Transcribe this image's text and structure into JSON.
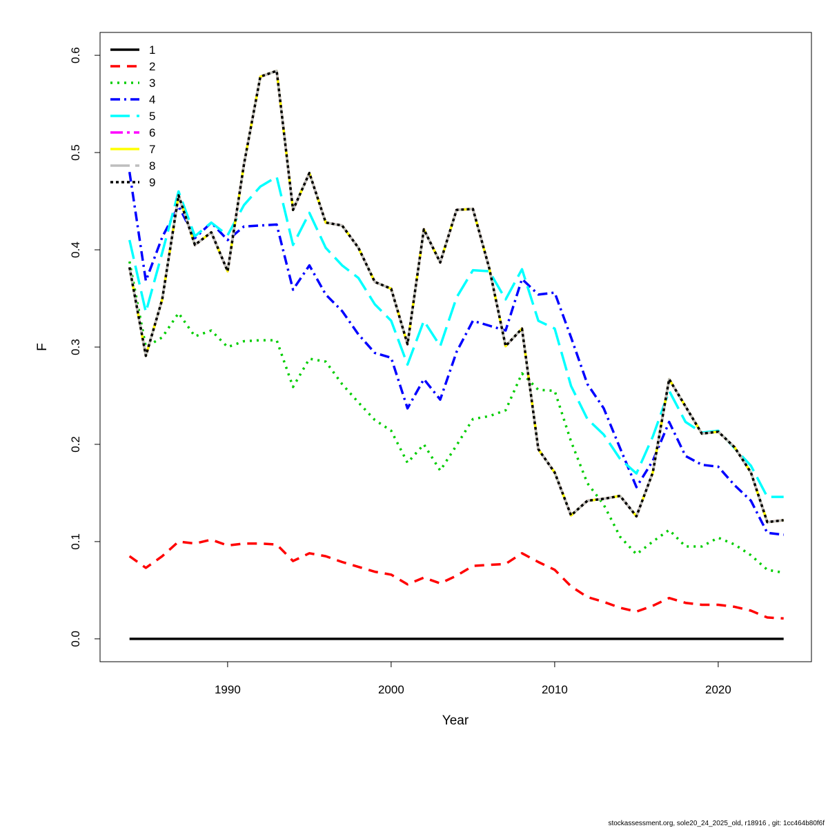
{
  "chart_data": {
    "type": "line",
    "title": "",
    "xlabel": "Year",
    "ylabel": "F",
    "xlim": [
      1982.2,
      2025.7
    ],
    "ylim": [
      -0.0235,
      0.6235
    ],
    "x_ticks": [
      1990,
      2000,
      2010,
      2020
    ],
    "y_ticks": [
      0.0,
      0.1,
      0.2,
      0.3,
      0.4,
      0.5,
      0.6
    ],
    "y_tick_labels": [
      "0.0",
      "0.1",
      "0.2",
      "0.3",
      "0.4",
      "0.5",
      "0.6"
    ],
    "grid": false,
    "legend_position": "top-left",
    "x": [
      1984,
      1985,
      1986,
      1987,
      1988,
      1989,
      1990,
      1991,
      1992,
      1993,
      1994,
      1995,
      1996,
      1997,
      1998,
      1999,
      2000,
      2001,
      2002,
      2003,
      2004,
      2005,
      2006,
      2007,
      2008,
      2009,
      2010,
      2011,
      2012,
      2013,
      2014,
      2015,
      2016,
      2017,
      2018,
      2019,
      2020,
      2021,
      2022,
      2023,
      2024
    ],
    "series": [
      {
        "name": "1",
        "color": "#000000",
        "dash": "",
        "width": 3.5,
        "values": [
          0,
          0,
          0,
          0,
          0,
          0,
          0,
          0,
          0,
          0,
          0,
          0,
          0,
          0,
          0,
          0,
          0,
          0,
          0,
          0,
          0,
          0,
          0,
          0,
          0,
          0,
          0,
          0,
          0,
          0,
          0,
          0,
          0,
          0,
          0,
          0,
          0,
          0,
          0,
          0,
          0
        ]
      },
      {
        "name": "2",
        "color": "#ff0000",
        "dash": "14 10",
        "width": 3.5,
        "values": [
          0.085,
          0.073,
          0.085,
          0.1,
          0.098,
          0.102,
          0.096,
          0.098,
          0.098,
          0.097,
          0.08,
          0.088,
          0.085,
          0.079,
          0.074,
          0.069,
          0.066,
          0.056,
          0.063,
          0.057,
          0.065,
          0.075,
          0.076,
          0.077,
          0.088,
          0.079,
          0.071,
          0.054,
          0.043,
          0.038,
          0.032,
          0.028,
          0.034,
          0.042,
          0.037,
          0.035,
          0.035,
          0.033,
          0.029,
          0.022,
          0.021
        ]
      },
      {
        "name": "3",
        "color": "#00cd00",
        "dash": "3 7",
        "width": 3.5,
        "values": [
          0.388,
          0.3,
          0.31,
          0.335,
          0.311,
          0.317,
          0.3,
          0.306,
          0.307,
          0.307,
          0.259,
          0.288,
          0.285,
          0.262,
          0.243,
          0.225,
          0.214,
          0.181,
          0.2,
          0.173,
          0.199,
          0.226,
          0.229,
          0.235,
          0.273,
          0.256,
          0.255,
          0.203,
          0.16,
          0.138,
          0.105,
          0.087,
          0.1,
          0.112,
          0.095,
          0.095,
          0.104,
          0.097,
          0.086,
          0.071,
          0.068
        ]
      },
      {
        "name": "4",
        "color": "#0000ff",
        "dash": "14 6 3 6",
        "width": 3.5,
        "values": [
          0.48,
          0.368,
          0.413,
          0.445,
          0.412,
          0.428,
          0.41,
          0.424,
          0.425,
          0.426,
          0.359,
          0.384,
          0.354,
          0.337,
          0.313,
          0.294,
          0.289,
          0.237,
          0.267,
          0.246,
          0.295,
          0.327,
          0.322,
          0.317,
          0.37,
          0.354,
          0.356,
          0.31,
          0.262,
          0.237,
          0.196,
          0.156,
          0.183,
          0.223,
          0.188,
          0.179,
          0.177,
          0.158,
          0.142,
          0.109,
          0.107
        ]
      },
      {
        "name": "5",
        "color": "#00ffff",
        "dash": "28 10",
        "width": 3.5,
        "values": [
          0.41,
          0.336,
          0.397,
          0.46,
          0.414,
          0.428,
          0.415,
          0.446,
          0.465,
          0.475,
          0.405,
          0.438,
          0.402,
          0.384,
          0.371,
          0.344,
          0.327,
          0.282,
          0.327,
          0.301,
          0.351,
          0.379,
          0.378,
          0.349,
          0.38,
          0.327,
          0.319,
          0.26,
          0.226,
          0.21,
          0.185,
          0.17,
          0.208,
          0.255,
          0.223,
          0.212,
          0.214,
          0.196,
          0.178,
          0.146,
          0.146
        ]
      },
      {
        "name": "6",
        "color": "#ff00ff",
        "dash": "18 6 4 6",
        "width": 3.5,
        "values": [
          0.382,
          0.291,
          0.349,
          0.456,
          0.405,
          0.418,
          0.378,
          0.488,
          0.578,
          0.584,
          0.441,
          0.479,
          0.428,
          0.425,
          0.402,
          0.367,
          0.36,
          0.303,
          0.421,
          0.387,
          0.441,
          0.442,
          0.381,
          0.301,
          0.319,
          0.195,
          0.171,
          0.127,
          0.142,
          0.144,
          0.147,
          0.126,
          0.171,
          0.267,
          0.239,
          0.211,
          0.213,
          0.197,
          0.171,
          0.12,
          0.122
        ]
      },
      {
        "name": "7",
        "color": "#ffff00",
        "dash": "",
        "width": 3.5,
        "values": [
          0.382,
          0.291,
          0.349,
          0.456,
          0.405,
          0.418,
          0.378,
          0.488,
          0.578,
          0.584,
          0.441,
          0.479,
          0.428,
          0.425,
          0.402,
          0.367,
          0.36,
          0.303,
          0.421,
          0.387,
          0.441,
          0.442,
          0.381,
          0.301,
          0.319,
          0.195,
          0.171,
          0.127,
          0.142,
          0.144,
          0.147,
          0.126,
          0.171,
          0.267,
          0.239,
          0.211,
          0.213,
          0.197,
          0.171,
          0.12,
          0.122
        ]
      },
      {
        "name": "8",
        "color": "#bebebe",
        "dash": "28 8",
        "width": 3.5,
        "values": [
          0.382,
          0.291,
          0.349,
          0.456,
          0.405,
          0.418,
          0.378,
          0.488,
          0.578,
          0.584,
          0.441,
          0.479,
          0.428,
          0.425,
          0.402,
          0.367,
          0.36,
          0.303,
          0.421,
          0.387,
          0.441,
          0.442,
          0.381,
          0.301,
          0.319,
          0.195,
          0.171,
          0.127,
          0.142,
          0.144,
          0.147,
          0.126,
          0.171,
          0.267,
          0.239,
          0.211,
          0.213,
          0.197,
          0.171,
          0.12,
          0.122
        ]
      },
      {
        "name": "9",
        "color": "#000000",
        "dash": "4 4",
        "width": 3.5,
        "values": [
          0.382,
          0.291,
          0.349,
          0.456,
          0.405,
          0.418,
          0.378,
          0.488,
          0.578,
          0.584,
          0.441,
          0.479,
          0.428,
          0.425,
          0.402,
          0.367,
          0.36,
          0.303,
          0.421,
          0.387,
          0.441,
          0.442,
          0.381,
          0.301,
          0.319,
          0.195,
          0.171,
          0.127,
          0.142,
          0.144,
          0.147,
          0.126,
          0.171,
          0.267,
          0.239,
          0.211,
          0.213,
          0.197,
          0.171,
          0.12,
          0.122
        ]
      }
    ]
  },
  "footer": {
    "text": "stockassessment.org, sole20_24_2025_old, r18916 , git: 1cc464b80f6f"
  }
}
